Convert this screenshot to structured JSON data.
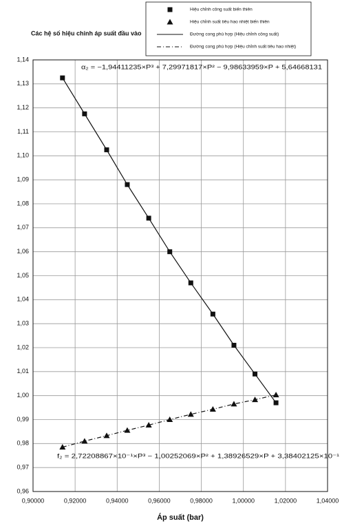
{
  "chart_data": {
    "type": "scatter-line",
    "title": "Các hệ số hiệu chỉnh áp suất đầu vào",
    "x_label": "Áp suất (bar)",
    "annotations": [
      "α₂ = −1,94411235×P³ + 7,29971817×P² − 9,98633959×P + 5,64668131",
      "f₂ = 2,72208867×10⁻¹×P³ − 1,00252069×P² + 1,38926529×P + 3,38402125×10⁻¹"
    ],
    "x": [
      0.914,
      0.9245,
      0.935,
      0.9448,
      0.955,
      0.965,
      0.975,
      0.9855,
      0.9955,
      1.0055,
      1.0155
    ],
    "series": [
      {
        "name": "Hiệu chỉnh công suất biến thiên",
        "color": "#111111",
        "marker": "square",
        "values": [
          1.1325,
          1.1175,
          1.1025,
          1.088,
          1.074,
          1.06,
          1.047,
          1.034,
          1.021,
          1.009,
          0.997
        ]
      },
      {
        "name": "Hiệu chỉnh suất tiêu hao nhiệt biến thiên",
        "color": "#111111",
        "marker": "triangle",
        "values": [
          0.9785,
          0.981,
          0.9833,
          0.9855,
          0.9877,
          0.99,
          0.9922,
          0.9943,
          0.9965,
          0.9983,
          1.0003
        ]
      },
      {
        "name": "Đường cong phù hợp (Hiệu chỉnh công suất)",
        "color": "#111111",
        "line": "solid",
        "values": [
          1.1325,
          1.1175,
          1.1025,
          1.088,
          1.074,
          1.06,
          1.047,
          1.034,
          1.021,
          1.009,
          0.997
        ]
      },
      {
        "name": "Đường cong phù hợp (Hiệu chỉnh suất tiêu hao nhiệt)",
        "color": "#111111",
        "line": "dashdot",
        "values": [
          0.9785,
          0.981,
          0.9833,
          0.9855,
          0.9877,
          0.99,
          0.9922,
          0.9943,
          0.9965,
          0.9983,
          1.0003
        ]
      }
    ],
    "xlim": [
      0.9,
      1.04
    ],
    "xticks": [
      {
        "value": 0.9,
        "label": "0,90000"
      },
      {
        "value": 0.92,
        "label": "0,92000"
      },
      {
        "value": 0.94,
        "label": "0,94000"
      },
      {
        "value": 0.96,
        "label": "0,96000"
      },
      {
        "value": 0.98,
        "label": "0,98000"
      },
      {
        "value": 1.0,
        "label": "1,00000"
      },
      {
        "value": 1.02,
        "label": "1,02000"
      },
      {
        "value": 1.04,
        "label": "1,04000"
      }
    ],
    "ylim": [
      0.96,
      1.14
    ],
    "yticks": [
      {
        "value": 0.96,
        "label": "0,96"
      },
      {
        "value": 0.97,
        "label": "0,97"
      },
      {
        "value": 0.98,
        "label": "0,98"
      },
      {
        "value": 0.99,
        "label": "0,99"
      },
      {
        "value": 1.0,
        "label": "1,00"
      },
      {
        "value": 1.01,
        "label": "1,01"
      },
      {
        "value": 1.02,
        "label": "1,02"
      },
      {
        "value": 1.03,
        "label": "1,03"
      },
      {
        "value": 1.04,
        "label": "1,04"
      },
      {
        "value": 1.05,
        "label": "1,05"
      },
      {
        "value": 1.06,
        "label": "1,06"
      },
      {
        "value": 1.07,
        "label": "1,07"
      },
      {
        "value": 1.08,
        "label": "1,08"
      },
      {
        "value": 1.09,
        "label": "1,09"
      },
      {
        "value": 1.1,
        "label": "1,10"
      },
      {
        "value": 1.11,
        "label": "1,11"
      },
      {
        "value": 1.12,
        "label": "1,12"
      },
      {
        "value": 1.13,
        "label": "1,13"
      },
      {
        "value": 1.14,
        "label": "1,14"
      }
    ],
    "grid": true
  }
}
